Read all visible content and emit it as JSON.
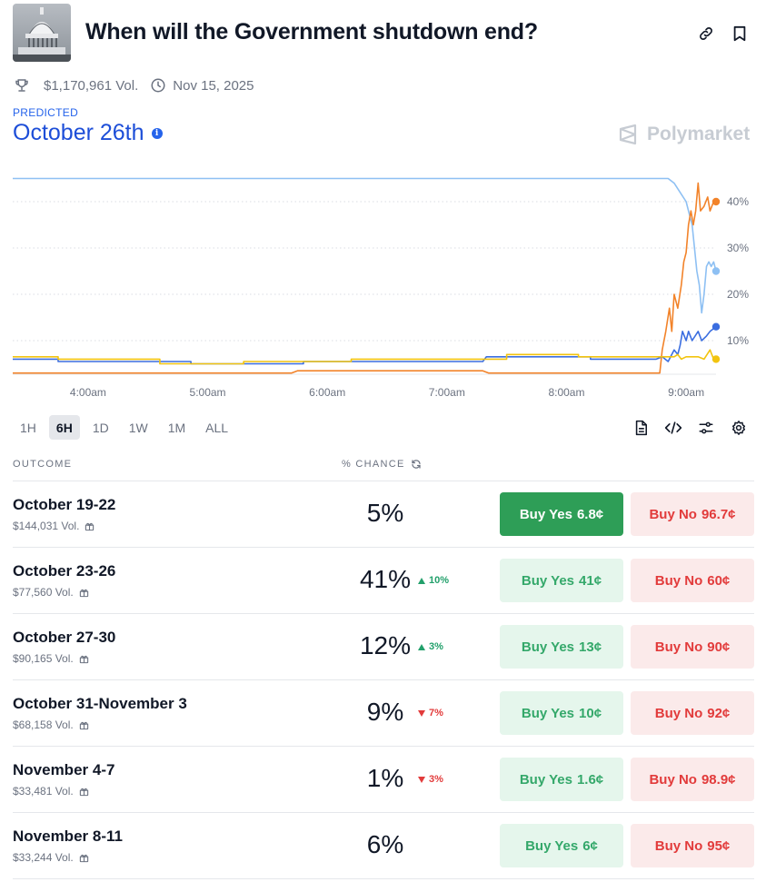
{
  "market": {
    "title": "When will the Government shutdown end?",
    "volume": "$1,170,961 Vol.",
    "end_date": "Nov 15, 2025",
    "predicted_label": "PREDICTED",
    "predicted_value": "October 26th",
    "brand": "Polymarket"
  },
  "icons": {
    "thumbnail": "capitol-dome-image",
    "link": "link-icon",
    "bookmark": "bookmark-icon",
    "trophy": "trophy-icon",
    "clock": "clock-icon",
    "info": "info-icon",
    "refresh": "refresh-icon",
    "gift": "gift-icon",
    "document": "document-icon",
    "embed": "code-icon",
    "sliders": "sliders-icon",
    "settings": "gear-icon"
  },
  "time_ranges": [
    "1H",
    "6H",
    "1D",
    "1W",
    "1M",
    "ALL"
  ],
  "selected_range": "6H",
  "table": {
    "col_outcome": "OUTCOME",
    "col_chance": "% CHANCE"
  },
  "outcomes": [
    {
      "name": "October 19-22",
      "volume": "$144,031 Vol.",
      "chance": "5%",
      "change": "",
      "direction": "",
      "yes_label": "Buy Yes",
      "yes_price": "6.8¢",
      "no_label": "Buy No",
      "no_price": "96.7¢",
      "yes_active": true
    },
    {
      "name": "October 23-26",
      "volume": "$77,560 Vol.",
      "chance": "41%",
      "change": "10%",
      "direction": "up",
      "yes_label": "Buy Yes",
      "yes_price": "41¢",
      "no_label": "Buy No",
      "no_price": "60¢",
      "yes_active": false
    },
    {
      "name": "October 27-30",
      "volume": "$90,165 Vol.",
      "chance": "12%",
      "change": "3%",
      "direction": "up",
      "yes_label": "Buy Yes",
      "yes_price": "13¢",
      "no_label": "Buy No",
      "no_price": "90¢",
      "yes_active": false
    },
    {
      "name": "October 31-November 3",
      "volume": "$68,158 Vol.",
      "chance": "9%",
      "change": "7%",
      "direction": "down",
      "yes_label": "Buy Yes",
      "yes_price": "10¢",
      "no_label": "Buy No",
      "no_price": "92¢",
      "yes_active": false
    },
    {
      "name": "November 4-7",
      "volume": "$33,481 Vol.",
      "chance": "1%",
      "change": "3%",
      "direction": "down",
      "yes_label": "Buy Yes",
      "yes_price": "1.6¢",
      "no_label": "Buy No",
      "no_price": "98.9¢",
      "yes_active": false
    },
    {
      "name": "November 8-11",
      "volume": "$33,244 Vol.",
      "chance": "6%",
      "change": "",
      "direction": "",
      "yes_label": "Buy Yes",
      "yes_price": "6¢",
      "no_label": "Buy No",
      "no_price": "95¢",
      "yes_active": false
    }
  ],
  "chart_data": {
    "type": "line",
    "x_ticks": [
      "4:00am",
      "5:00am",
      "6:00am",
      "7:00am",
      "8:00am",
      "9:00am"
    ],
    "y_ticks": [
      "10%",
      "20%",
      "30%",
      "40%"
    ],
    "ylim": [
      0,
      45
    ],
    "grid": true,
    "series": [
      {
        "color": "#8ec0f3",
        "points": [
          [
            3.37,
            45
          ],
          [
            4.0,
            45
          ],
          [
            5.0,
            45
          ],
          [
            6.0,
            45
          ],
          [
            7.0,
            45
          ],
          [
            8.0,
            45
          ],
          [
            8.85,
            45
          ],
          [
            8.9,
            44
          ],
          [
            8.95,
            42
          ],
          [
            9.0,
            40
          ],
          [
            9.03,
            37
          ],
          [
            9.05,
            35
          ],
          [
            9.07,
            30
          ],
          [
            9.09,
            25
          ],
          [
            9.11,
            22
          ],
          [
            9.13,
            16
          ],
          [
            9.15,
            20
          ],
          [
            9.17,
            26
          ],
          [
            9.19,
            27
          ],
          [
            9.21,
            26
          ],
          [
            9.23,
            27
          ],
          [
            9.25,
            25
          ]
        ]
      },
      {
        "color": "#f2832a",
        "points": [
          [
            3.37,
            3
          ],
          [
            4.0,
            3
          ],
          [
            5.0,
            3
          ],
          [
            5.7,
            3
          ],
          [
            5.75,
            3.5
          ],
          [
            7.3,
            3.5
          ],
          [
            7.35,
            3
          ],
          [
            8.78,
            3
          ],
          [
            8.8,
            8
          ],
          [
            8.83,
            12
          ],
          [
            8.86,
            17
          ],
          [
            8.88,
            12
          ],
          [
            8.9,
            20
          ],
          [
            8.93,
            17
          ],
          [
            8.96,
            22
          ],
          [
            8.98,
            27
          ],
          [
            9.0,
            29
          ],
          [
            9.02,
            35
          ],
          [
            9.04,
            38
          ],
          [
            9.06,
            35
          ],
          [
            9.08,
            38
          ],
          [
            9.1,
            44
          ],
          [
            9.12,
            38
          ],
          [
            9.15,
            39
          ],
          [
            9.18,
            41
          ],
          [
            9.2,
            38
          ],
          [
            9.23,
            40
          ],
          [
            9.25,
            40
          ]
        ]
      },
      {
        "color": "#3b6ee0",
        "points": [
          [
            3.37,
            6
          ],
          [
            3.75,
            6
          ],
          [
            3.75,
            5.5
          ],
          [
            4.86,
            5.5
          ],
          [
            4.86,
            5
          ],
          [
            5.8,
            5
          ],
          [
            5.8,
            5.5
          ],
          [
            7.3,
            5.5
          ],
          [
            7.33,
            6.5
          ],
          [
            8.2,
            6.5
          ],
          [
            8.2,
            6
          ],
          [
            8.75,
            6
          ],
          [
            8.8,
            6.5
          ],
          [
            8.85,
            5.5
          ],
          [
            8.9,
            8
          ],
          [
            8.93,
            7
          ],
          [
            8.95,
            9
          ],
          [
            8.97,
            12
          ],
          [
            9.0,
            10
          ],
          [
            9.02,
            12
          ],
          [
            9.05,
            10
          ],
          [
            9.1,
            12
          ],
          [
            9.13,
            10
          ],
          [
            9.17,
            11
          ],
          [
            9.2,
            12
          ],
          [
            9.25,
            13
          ]
        ]
      },
      {
        "color": "#f2c40f",
        "points": [
          [
            3.37,
            6.5
          ],
          [
            3.75,
            6.5
          ],
          [
            3.75,
            6
          ],
          [
            4.6,
            6
          ],
          [
            4.6,
            5
          ],
          [
            5.3,
            5
          ],
          [
            5.3,
            5.5
          ],
          [
            6.2,
            5.5
          ],
          [
            6.2,
            6
          ],
          [
            7.5,
            6
          ],
          [
            7.5,
            7
          ],
          [
            8.1,
            7
          ],
          [
            8.1,
            6.5
          ],
          [
            8.5,
            6.5
          ],
          [
            8.9,
            6.5
          ],
          [
            8.93,
            7
          ],
          [
            8.96,
            6
          ],
          [
            9.0,
            6.5
          ],
          [
            9.1,
            6.5
          ],
          [
            9.15,
            6
          ],
          [
            9.2,
            8
          ],
          [
            9.23,
            6
          ],
          [
            9.25,
            6
          ]
        ]
      }
    ]
  }
}
